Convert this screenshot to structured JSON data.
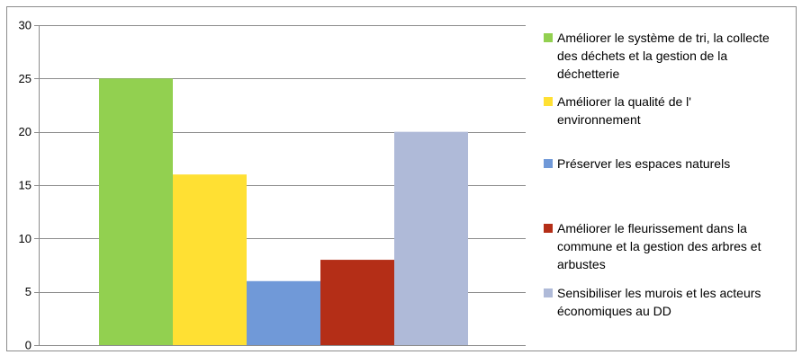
{
  "chart_data": {
    "type": "bar",
    "title": "",
    "xlabel": "",
    "ylabel": "",
    "ylim": [
      0,
      30
    ],
    "yticks": [
      0,
      5,
      10,
      15,
      20,
      25,
      30
    ],
    "grid": true,
    "legend_position": "right",
    "series": [
      {
        "name": "Améliorer le système de tri, la collecte des déchets et la gestion de la déchetterie",
        "legend_lines": [
          "Améliorer le système de tri, la collecte",
          "des déchets et la gestion de la",
          "déchetterie"
        ],
        "values": [
          25
        ],
        "color": "#92d050"
      },
      {
        "name": "Améliorer la qualité de l' environnement",
        "legend_lines": [
          "Améliorer la qualité de l'",
          "environnement"
        ],
        "values": [
          16
        ],
        "color": "#ffe033"
      },
      {
        "name": "Préserver les espaces naturels",
        "legend_lines": [
          "Préserver les espaces naturels"
        ],
        "values": [
          6
        ],
        "color": "#7099d8"
      },
      {
        "name": "Améliorer le fleurissement dans la commune et la gestion des arbres et arbustes",
        "legend_lines": [
          "Améliorer le fleurissement dans la",
          "commune et la gestion des arbres et",
          "arbustes"
        ],
        "values": [
          8
        ],
        "color": "#b42e17"
      },
      {
        "name": "Sensibiliser les murois et les acteurs économiques au DD",
        "legend_lines": [
          "Sensibiliser les murois et les acteurs",
          "économiques au DD"
        ],
        "values": [
          20
        ],
        "color": "#afbad8"
      }
    ]
  }
}
